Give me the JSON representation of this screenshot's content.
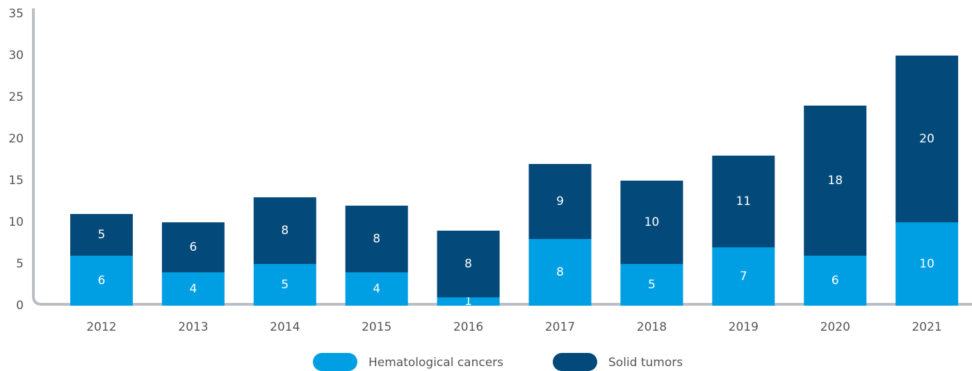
{
  "chart_data": {
    "type": "stacked_bar",
    "categories": [
      "2012",
      "2013",
      "2014",
      "2015",
      "2016",
      "2017",
      "2018",
      "2019",
      "2020",
      "2021"
    ],
    "series": [
      {
        "name": "Hematological cancers",
        "color": "#009fe3",
        "values": [
          6,
          4,
          5,
          4,
          1,
          8,
          5,
          7,
          6,
          10
        ]
      },
      {
        "name": "Solid tumors",
        "color": "#03497a",
        "values": [
          5,
          6,
          8,
          8,
          8,
          9,
          10,
          11,
          18,
          20
        ]
      }
    ],
    "ylim": [
      0,
      35
    ],
    "yticks": [
      0,
      5,
      10,
      15,
      20,
      25,
      30,
      35
    ],
    "legend": "bottom"
  }
}
